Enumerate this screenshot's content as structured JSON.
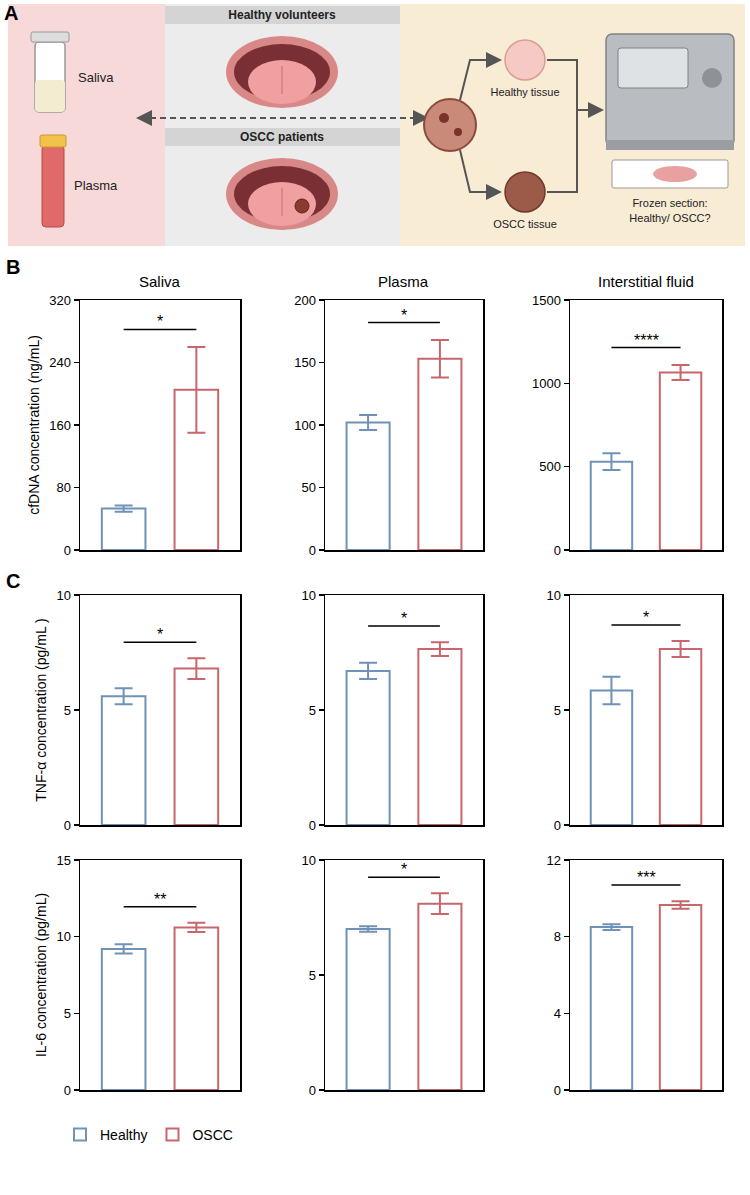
{
  "diagram": {
    "label": "A",
    "samples": [
      "Saliva",
      "Plasma"
    ],
    "groups": [
      "Healthy volunteers",
      "OSCC patients"
    ],
    "tissues": [
      "Healthy tissue",
      "OSCC tissue"
    ],
    "result": "Frozen section: Healthy/ OSCC?"
  },
  "chart_panels": [
    "B",
    "C"
  ],
  "chart_data": [
    {
      "type": "bar",
      "title": "Saliva",
      "y_label": "cfDNA concentration (ng/mL)",
      "ylim": [
        0,
        320
      ],
      "yticks": [
        0,
        80,
        160,
        240,
        320
      ],
      "grid": false,
      "tick_labels": "y",
      "legend": "bottom left",
      "significance": "*",
      "series": [
        {
          "name": "Healthy",
          "color": "#6f93b8",
          "values": [
            53
          ],
          "errors": [
            4
          ]
        },
        {
          "name": "OSCC",
          "color": "#c7666c",
          "values": [
            205
          ],
          "errors": [
            55
          ]
        }
      ]
    },
    {
      "type": "bar",
      "title": "Plasma",
      "ylim": [
        0,
        200
      ],
      "yticks": [
        0,
        50,
        100,
        150,
        200
      ],
      "grid": false,
      "tick_labels": "y",
      "significance": "*",
      "series": [
        {
          "name": "Healthy",
          "color": "#6f93b8",
          "values": [
            102
          ],
          "errors": [
            6
          ]
        },
        {
          "name": "OSCC",
          "color": "#c7666c",
          "values": [
            153
          ],
          "errors": [
            15
          ]
        }
      ]
    },
    {
      "type": "bar",
      "title": "Interstitial fluid",
      "ylim": [
        0,
        1500
      ],
      "yticks": [
        0,
        500,
        1000,
        1500
      ],
      "grid": false,
      "tick_labels": "y",
      "significance": "****",
      "series": [
        {
          "name": "Healthy",
          "color": "#6f93b8",
          "values": [
            530
          ],
          "errors": [
            50
          ]
        },
        {
          "name": "OSCC",
          "color": "#c7666c",
          "values": [
            1065
          ],
          "errors": [
            45
          ]
        }
      ]
    },
    {
      "type": "bar",
      "y_label": "TNF-α concentration (pg/mL )",
      "ylim": [
        0,
        10
      ],
      "yticks": [
        0,
        5,
        10
      ],
      "grid": false,
      "tick_labels": "y",
      "significance": "*",
      "series": [
        {
          "name": "Healthy",
          "color": "#6f93b8",
          "values": [
            5.6
          ],
          "errors": [
            0.35
          ]
        },
        {
          "name": "OSCC",
          "color": "#c7666c",
          "values": [
            6.8
          ],
          "errors": [
            0.45
          ]
        }
      ]
    },
    {
      "type": "bar",
      "ylim": [
        0,
        10
      ],
      "yticks": [
        0,
        5,
        10
      ],
      "grid": false,
      "tick_labels": "y",
      "significance": "*",
      "series": [
        {
          "name": "Healthy",
          "color": "#6f93b8",
          "values": [
            6.7
          ],
          "errors": [
            0.35
          ]
        },
        {
          "name": "OSCC",
          "color": "#c7666c",
          "values": [
            7.65
          ],
          "errors": [
            0.3
          ]
        }
      ]
    },
    {
      "type": "bar",
      "ylim": [
        0,
        10
      ],
      "yticks": [
        0,
        5,
        10
      ],
      "grid": false,
      "tick_labels": "y",
      "significance": "*",
      "series": [
        {
          "name": "Healthy",
          "color": "#6f93b8",
          "values": [
            5.85
          ],
          "errors": [
            0.6
          ]
        },
        {
          "name": "OSCC",
          "color": "#c7666c",
          "values": [
            7.65
          ],
          "errors": [
            0.35
          ]
        }
      ]
    },
    {
      "type": "bar",
      "y_label": "IL-6 concentration (pg/mL)",
      "ylim": [
        0,
        15
      ],
      "yticks": [
        0,
        5,
        10,
        15
      ],
      "grid": false,
      "tick_labels": "y",
      "significance": "**",
      "series": [
        {
          "name": "Healthy",
          "color": "#6f93b8",
          "values": [
            9.2
          ],
          "errors": [
            0.3
          ]
        },
        {
          "name": "OSCC",
          "color": "#c7666c",
          "values": [
            10.6
          ],
          "errors": [
            0.3
          ]
        }
      ]
    },
    {
      "type": "bar",
      "ylim": [
        0,
        10
      ],
      "yticks": [
        0,
        5,
        10
      ],
      "grid": false,
      "tick_labels": "y",
      "significance": "*",
      "series": [
        {
          "name": "Healthy",
          "color": "#6f93b8",
          "values": [
            7.0
          ],
          "errors": [
            0.12
          ]
        },
        {
          "name": "OSCC",
          "color": "#c7666c",
          "values": [
            8.1
          ],
          "errors": [
            0.45
          ]
        }
      ]
    },
    {
      "type": "bar",
      "ylim": [
        0,
        12
      ],
      "yticks": [
        0,
        4,
        8,
        12
      ],
      "grid": false,
      "tick_labels": "y",
      "significance": "***",
      "series": [
        {
          "name": "Healthy",
          "color": "#6f93b8",
          "values": [
            8.5
          ],
          "errors": [
            0.15
          ]
        },
        {
          "name": "OSCC",
          "color": "#c7666c",
          "values": [
            9.65
          ],
          "errors": [
            0.2
          ]
        }
      ]
    }
  ]
}
